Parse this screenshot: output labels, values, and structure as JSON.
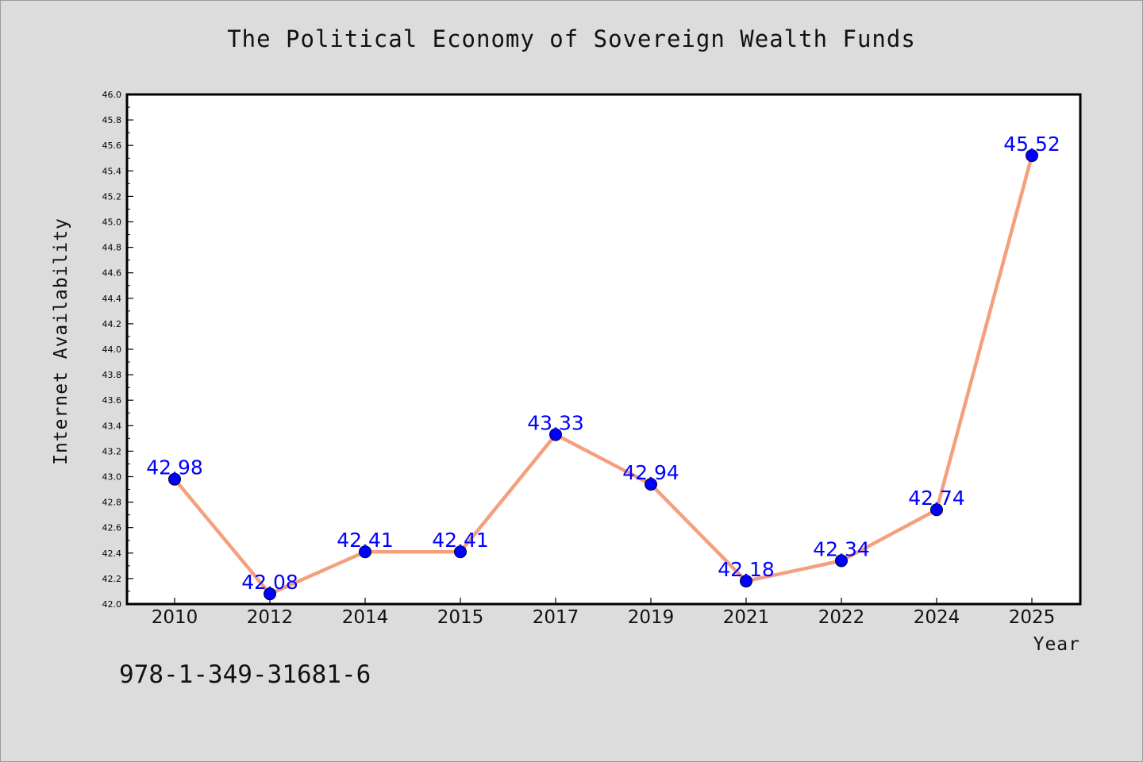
{
  "title": "The Political Economy of Sovereign Wealth Funds",
  "footer_text": "978-1-349-31681-6",
  "colors": {
    "background": "#dcdcdc",
    "plot_background": "#ffffff",
    "line": "#f4a07e",
    "marker": "#0000ff",
    "label": "#0000ff"
  },
  "chart_data": {
    "type": "line",
    "xlabel": "Year",
    "ylabel": "Internet Availability",
    "categories": [
      "2010",
      "2012",
      "2014",
      "2015",
      "2017",
      "2019",
      "2021",
      "2022",
      "2024",
      "2025"
    ],
    "values": [
      42.98,
      42.08,
      42.41,
      42.41,
      43.33,
      42.94,
      42.18,
      42.34,
      42.74,
      45.52
    ],
    "data_labels": [
      "42.98",
      "42.08",
      "42.41",
      "42.41",
      "43.33",
      "42.94",
      "42.18",
      "42.34",
      "42.74",
      "45.52"
    ],
    "ylim": [
      42.0,
      46.0
    ],
    "yticks": [
      "42.0",
      "42.2",
      "42.4",
      "42.6",
      "42.8",
      "43.0",
      "43.2",
      "43.4",
      "43.6",
      "43.8",
      "44.0",
      "44.2",
      "44.4",
      "44.6",
      "44.8",
      "45.0",
      "45.2",
      "45.4",
      "45.6",
      "45.8",
      "46.0"
    ],
    "grid": false,
    "legend": "none"
  }
}
